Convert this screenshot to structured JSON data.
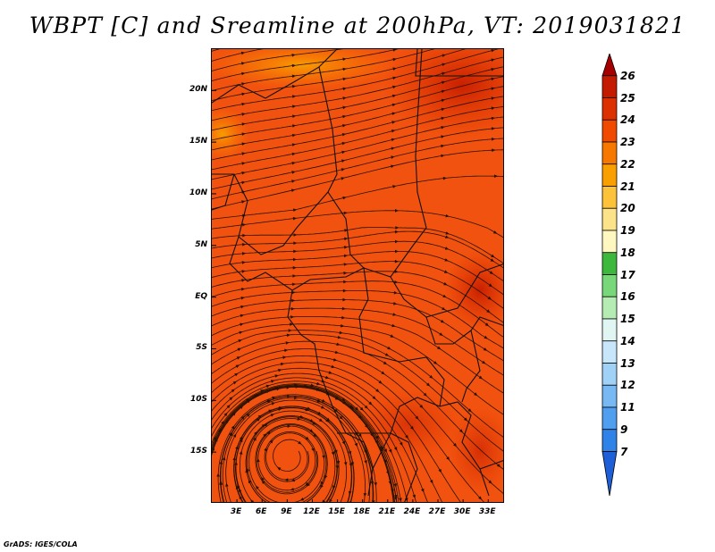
{
  "title": "WBPT [C] and Sreamline at 200hPa, VT: 2019031821",
  "footer": "GrADS: IGES/COLA",
  "map": {
    "lat_labels": [
      "20N",
      "15N",
      "10N",
      "5N",
      "EQ",
      "5S",
      "10S",
      "15S"
    ],
    "lat_values": [
      20,
      15,
      10,
      5,
      0,
      -5,
      -10,
      -15
    ],
    "lon_labels": [
      "3E",
      "6E",
      "9E",
      "12E",
      "15E",
      "18E",
      "21E",
      "24E",
      "27E",
      "30E",
      "33E"
    ],
    "lon_values": [
      3,
      6,
      9,
      12,
      15,
      18,
      21,
      24,
      27,
      30,
      33
    ],
    "lon_range": [
      0,
      35
    ],
    "lat_range": [
      -20,
      24
    ],
    "field_base_color": "#f2520f"
  },
  "colorbar": {
    "labels": [
      "26",
      "25",
      "24",
      "23",
      "22",
      "21",
      "20",
      "19",
      "18",
      "17",
      "16",
      "15",
      "14",
      "13",
      "12",
      "11",
      "9",
      "7"
    ],
    "colors": [
      "#a50000",
      "#c41a00",
      "#dc3000",
      "#f04a00",
      "#f77800",
      "#f9a000",
      "#fbc23a",
      "#fce38a",
      "#fff7c0",
      "#3cb83c",
      "#78d778",
      "#b4ecb4",
      "#e1f6f2",
      "#c8e6fa",
      "#a0d2f8",
      "#78b9f4",
      "#509ef0",
      "#2f82e8",
      "#1e5fd8"
    ]
  }
}
